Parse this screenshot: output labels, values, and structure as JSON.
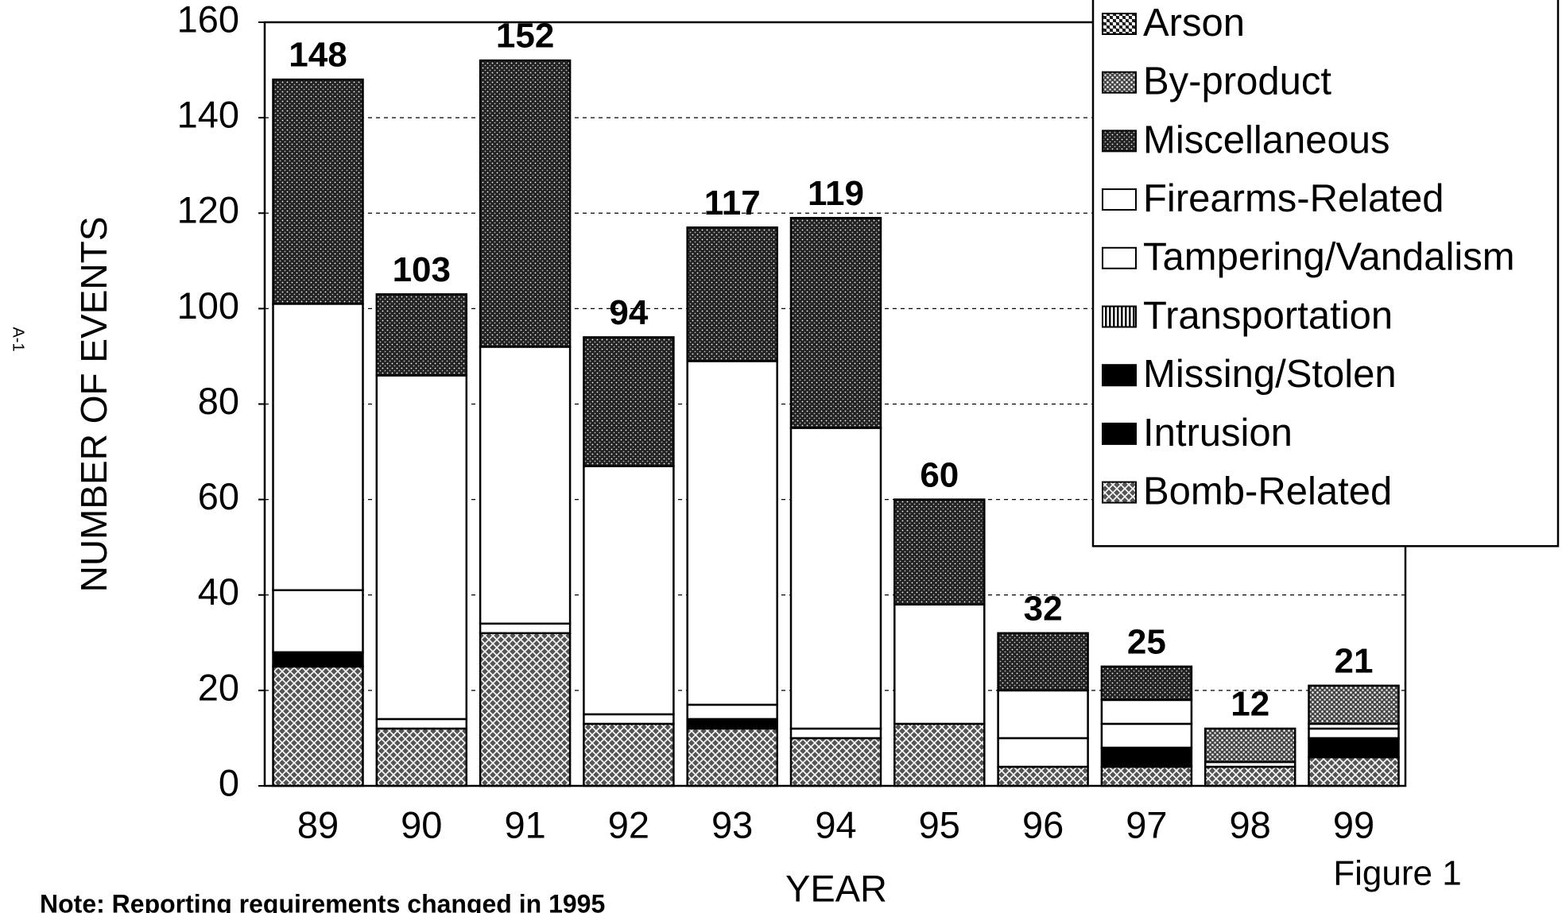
{
  "chart_data": {
    "type": "stacked-bar",
    "x_label": "YEAR",
    "y_label": "NUMBER OF EVENTS",
    "figure_label": "Figure 1",
    "note": "Note: Reporting requirements changed in 1995",
    "page_label": "A-1",
    "categories": [
      "89",
      "90",
      "91",
      "92",
      "93",
      "94",
      "95",
      "96",
      "97",
      "98",
      "99"
    ],
    "series": [
      {
        "name": "Bomb-Related",
        "color": "#555555",
        "pattern": "crosshatch",
        "values": [
          25,
          12,
          32,
          13,
          12,
          10,
          13,
          4,
          4,
          4,
          6
        ]
      },
      {
        "name": "Intrusion",
        "color": "#000000",
        "pattern": "solid",
        "values": [
          3,
          0,
          0,
          0,
          0,
          0,
          0,
          0,
          0,
          0,
          4
        ]
      },
      {
        "name": "Missing/Stolen",
        "color": "#000000",
        "pattern": "solid",
        "values": [
          0,
          0,
          0,
          0,
          2,
          0,
          0,
          0,
          4,
          0,
          0
        ]
      },
      {
        "name": "Transportation",
        "color": "#333333",
        "pattern": "vlines",
        "values": [
          0,
          0,
          0,
          0,
          0,
          0,
          0,
          0,
          0,
          0,
          0
        ]
      },
      {
        "name": "Tampering/Vandalism",
        "color": "#ffffff",
        "pattern": "solid",
        "values": [
          13,
          2,
          2,
          2,
          3,
          2,
          0,
          6,
          5,
          1,
          2
        ]
      },
      {
        "name": "Firearms-Related",
        "color": "#ffffff",
        "pattern": "solid",
        "values": [
          60,
          72,
          58,
          52,
          72,
          63,
          25,
          10,
          5,
          0,
          1
        ]
      },
      {
        "name": "Miscellaneous",
        "color": "#222222",
        "pattern": "darkdots",
        "values": [
          47,
          17,
          60,
          27,
          28,
          44,
          22,
          12,
          7,
          0,
          0
        ]
      },
      {
        "name": "By-product",
        "color": "#444444",
        "pattern": "lightdots",
        "values": [
          0,
          0,
          0,
          0,
          0,
          0,
          0,
          0,
          0,
          7,
          8
        ]
      },
      {
        "name": "Arson",
        "color": "#444444",
        "pattern": "checker",
        "values": [
          0,
          0,
          0,
          0,
          0,
          0,
          0,
          0,
          0,
          0,
          0
        ]
      }
    ],
    "totals": [
      148,
      103,
      152,
      94,
      117,
      119,
      60,
      32,
      25,
      12,
      21
    ],
    "ylim": [
      0,
      160
    ],
    "yticks": [
      0,
      20,
      40,
      60,
      80,
      100,
      120,
      140,
      160
    ],
    "grid": true,
    "legend": "top-right"
  }
}
